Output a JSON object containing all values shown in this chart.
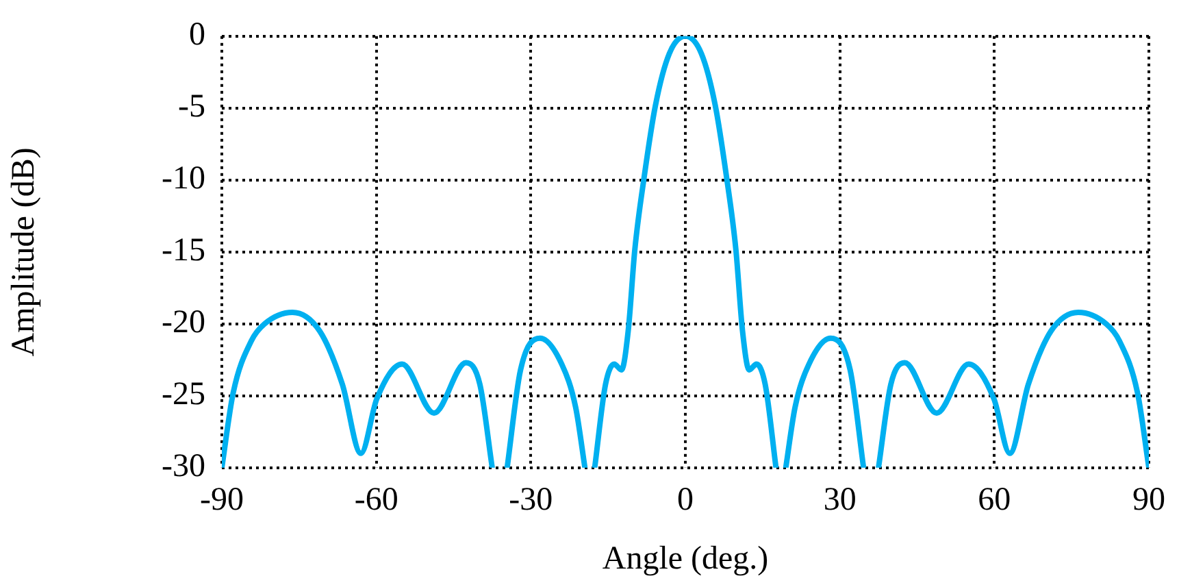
{
  "chart_data": {
    "type": "line",
    "xlabel": "Angle (deg.)",
    "ylabel": "Amplitude (dB)",
    "x": [
      -90,
      -87.8,
      -84.3,
      -81.7,
      -76.3,
      -71,
      -66.6,
      -63,
      -59.9,
      -55,
      -48.8,
      -42.6,
      -39.9,
      -37.5,
      -36,
      -34.6,
      -32,
      -28.2,
      -24,
      -21.3,
      -19.5,
      -18.5,
      -17.6,
      -15.5,
      -13.8,
      -12.4,
      -11.1,
      -9.8,
      -8,
      -5.8,
      -3.1,
      0,
      3.1,
      5.8,
      8,
      9.8,
      11.1,
      12.4,
      13.8,
      15.5,
      17.6,
      18.5,
      19.5,
      21.3,
      24,
      28.2,
      32,
      34.6,
      36,
      37.5,
      39.9,
      42.6,
      48.8,
      55,
      59.9,
      63,
      66.6,
      71,
      76.3,
      81.7,
      84.3,
      87.8,
      90
    ],
    "series": [
      {
        "color": "#00b0f0",
        "values": [
          -30,
          -24.8,
          -21.2,
          -20,
          -19.2,
          -20.5,
          -24.2,
          -29,
          -25.2,
          -22.8,
          -26.2,
          -22.7,
          -24.2,
          -30,
          null,
          -30,
          -23.2,
          -21,
          -22.8,
          -25.8,
          -30,
          null,
          -30,
          -24.2,
          -22.8,
          -23.2,
          -20.5,
          -14.8,
          -9.8,
          -4.8,
          -1.2,
          0,
          -1.2,
          -4.8,
          -9.8,
          -14.8,
          -20.5,
          -23.2,
          -22.8,
          -24.2,
          -30,
          null,
          -30,
          -25.8,
          -22.8,
          -21,
          -23.2,
          -30,
          null,
          -30,
          -24.2,
          -22.7,
          -26.2,
          -22.8,
          -25.2,
          -29,
          -24.2,
          -20.5,
          -19.2,
          -20,
          -21.2,
          -24.8,
          -30
        ]
      }
    ],
    "xlim": [
      -90,
      90
    ],
    "xticks": [
      -90,
      -60,
      -30,
      0,
      30,
      60,
      90
    ],
    "ylim": [
      -30,
      0
    ],
    "yticks": [
      -30,
      -25,
      -20,
      -15,
      -10,
      -5,
      0
    ],
    "grid": true,
    "legend": false,
    "marker": "none",
    "line_style": "solid"
  }
}
